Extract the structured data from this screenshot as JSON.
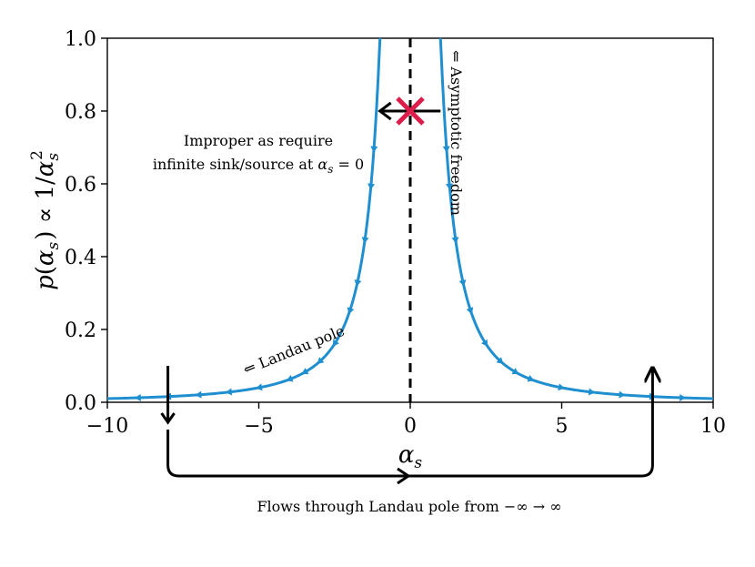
{
  "chart_data": {
    "type": "line",
    "title": "",
    "xlabel": "α_s",
    "ylabel": "p(α_s) ∝ 1/α_s²",
    "xlim": [
      -10,
      10
    ],
    "ylim": [
      0,
      1
    ],
    "x_ticks": [
      -10,
      -5,
      0,
      5,
      10
    ],
    "y_ticks": [
      0.0,
      0.2,
      0.4,
      0.6,
      0.8,
      1.0
    ],
    "x_tick_labels": [
      "−10",
      "−5",
      "0",
      "5",
      "10"
    ],
    "y_tick_labels": [
      "0.0",
      "0.2",
      "0.4",
      "0.6",
      "0.8",
      "1.0"
    ],
    "grid": false,
    "series": [
      {
        "function": "1/x^2",
        "color": "#1f8fd0",
        "left_branch_x": [
          -10,
          -9,
          -8,
          -7,
          -6,
          -5,
          -4,
          -3.5,
          -3,
          -2.5,
          -2,
          -1.75,
          -1.5,
          -1.3,
          -1.2,
          -1.1,
          -1.05,
          -1.0
        ],
        "left_branch_y": [
          0.01,
          0.0123,
          0.0156,
          0.0204,
          0.0278,
          0.04,
          0.0625,
          0.0816,
          0.111,
          0.16,
          0.25,
          0.327,
          0.444,
          0.592,
          0.694,
          0.826,
          0.907,
          1.0
        ],
        "right_branch_x": [
          1.0,
          1.05,
          1.1,
          1.2,
          1.3,
          1.5,
          1.75,
          2,
          2.5,
          3,
          3.5,
          4,
          5,
          6,
          7,
          8,
          9,
          10
        ],
        "right_branch_y": [
          1.0,
          0.907,
          0.826,
          0.694,
          0.592,
          0.444,
          0.327,
          0.25,
          0.16,
          0.111,
          0.0816,
          0.0625,
          0.04,
          0.0278,
          0.0204,
          0.0156,
          0.0123,
          0.01
        ],
        "left_arrows_x": [
          -9,
          -8,
          -7,
          -6,
          -5,
          -4,
          -3.5,
          -3,
          -2.5,
          -2,
          -1.75,
          -1.5,
          -1.3,
          -1.2
        ],
        "right_arrows_x": [
          1.2,
          1.3,
          1.5,
          1.75,
          2,
          2.5,
          3,
          3.5,
          4,
          5,
          6,
          7,
          8,
          9
        ]
      }
    ],
    "vline": {
      "x": 0,
      "style": "dashed",
      "color": "#000000"
    },
    "marker": {
      "x": 0,
      "y": 0.8,
      "symbol": "x",
      "color": "#dc1c4b"
    },
    "marker_arrow": {
      "from_x": 1.0,
      "to_x": -1.0,
      "y": 0.8
    },
    "annotations": {
      "landau_pole": "⇐ Landau pole",
      "asymptotic_freedom": "⇐ Asymptotic freedom",
      "improper_line1": "Improper as require",
      "improper_line2_prefix": "infinite sink/source at ",
      "improper_line2_math": "α",
      "improper_line2_sub": "s",
      "improper_line2_suffix": " = 0",
      "flows_caption": "Flows through Landau pole from −∞ → ∞"
    },
    "flow_path": {
      "down_x": -8,
      "up_x": 8,
      "top_y": 0.1
    }
  }
}
